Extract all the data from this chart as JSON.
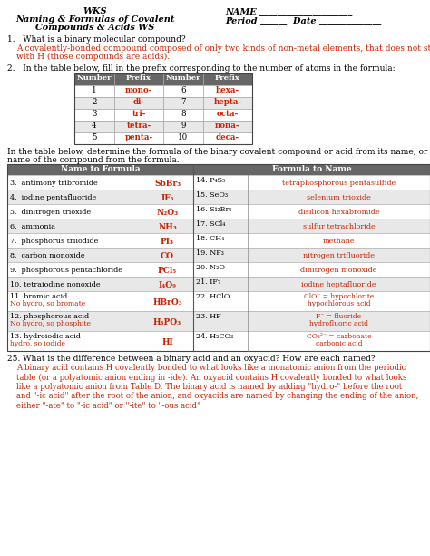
{
  "bg": "#ffffff",
  "red": "#cc2200",
  "black": "#000000",
  "gray_header": "#666666",
  "white": "#ffffff",
  "row_even": "#ffffff",
  "row_odd": "#e8e8e8",
  "hdr_l1": "WKS",
  "hdr_l2": "Naming & Formulas of Covalent",
  "hdr_l3": "Compounds & Acids WS",
  "hdr_r1": "NAME _____________________",
  "hdr_r2": "Period ______  Date ______________",
  "q1": "1.   What is a binary molecular compound?",
  "q1a1": "A covalently-bonded compound composed of only two kinds of non-metal elements, that does not start",
  "q1a2": "with H (those compounds are acids).",
  "q2": "2.   In the table below, fill in the prefix corresponding to the number of atoms in the formula:",
  "ptbl_hdr": [
    "Number",
    "Prefix",
    "Number",
    "Prefix"
  ],
  "ptbl_rows": [
    [
      "1",
      "mono-",
      "6",
      "hexa-"
    ],
    [
      "2",
      "di-",
      "7",
      "hepta-"
    ],
    [
      "3",
      "tri-",
      "8",
      "octa-"
    ],
    [
      "4",
      "tetra-",
      "9",
      "nona-"
    ],
    [
      "5",
      "penta-",
      "10",
      "deca-"
    ]
  ],
  "intro1": "In the table below, determine the formula of the binary covalent compound or acid from its name, or the",
  "intro2": "name of the compound from the formula.",
  "mtbl_rows": [
    [
      "3.  antimony tribromide",
      "SbBr₃",
      "14. P₄S₅",
      "tetraphosphorous pentasulfide"
    ],
    [
      "4.  iodine pentafluoride",
      "IF₅",
      "15. SeO₃",
      "selenium trioxide"
    ],
    [
      "5.  dinitrogen trioxide",
      "N₂O₃",
      "16. Si₂Br₆",
      "disilicon hexabromide"
    ],
    [
      "6.  ammonia",
      "NH₃",
      "17. SCl₄",
      "sulfur tetrachloride"
    ],
    [
      "7.  phosphorus triiodide",
      "PI₃",
      "18. CH₄",
      "methane"
    ],
    [
      "8.  carbon monoxide",
      "CO",
      "19. NF₃",
      "nitrogen trifluoride"
    ],
    [
      "9.  phosphorous pentachloride",
      "PCl₅",
      "20. N₂O",
      "dinitrogen monoxide"
    ],
    [
      "10. tetraiodine nonoxide",
      "I₄O₉",
      "21. IF₇",
      "iodine heptafluoride"
    ],
    [
      "11. bromic acid\nNo hydro, so bromate",
      "HBrO₃",
      "22. HClO",
      "ClO⁻ = hypochlorite\nhypochlorous acid"
    ],
    [
      "12. phosphorous acid\nNo hydro, so phosphite",
      "H₃PO₃",
      "23. HF",
      "F⁻ = fluoride\nhydrofluoric acid"
    ],
    [
      "13. hydroiodic acid\nhydro, so iodide",
      "HI",
      "24. H₂CO₃",
      "CO₃²⁻ = carbonate\ncarbonic acid"
    ]
  ],
  "q25": "25. What is the difference between a binary acid and an oxyacid? How are each named?",
  "q25a": "A binary acid contains H covalently bonded to what looks like a monatomic anion from the periodic\ntable (or a polyatomic anion ending in -ide). An oxyacid contains H covalently bonded to what looks\nlike a polyatomic anion from Table D. The binary acid is named by adding \"hydro-\" before the root\nand \"-ic acid\" after the root of the anion, and oxyacids are named by changing the ending of the anion,\neither \"-ate\" to \"-ic acid\" or \"-ite\" to \"-ous acid\""
}
